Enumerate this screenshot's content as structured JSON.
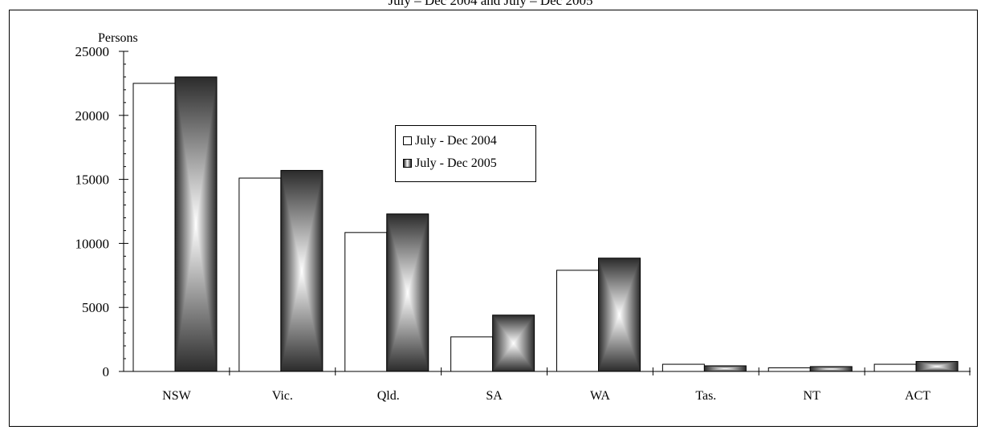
{
  "chart_data": {
    "type": "bar",
    "title": "July – Dec 2004 and July – Dec 2005",
    "ylabel": "Persons",
    "xlabel": "",
    "ylim": [
      0,
      25000
    ],
    "yticks": [
      "0",
      "5000",
      "10000",
      "15000",
      "20000",
      "25000"
    ],
    "categories": [
      "NSW",
      "Vic.",
      "Qld.",
      "SA",
      "WA",
      "Tas.",
      "NT",
      "ACT"
    ],
    "series": [
      {
        "name": "July - Dec 2004",
        "values": [
          22500,
          15100,
          10850,
          2700,
          7900,
          560,
          280,
          560
        ]
      },
      {
        "name": "July - Dec 2005",
        "values": [
          23000,
          15700,
          12300,
          4400,
          8850,
          440,
          380,
          780
        ]
      }
    ],
    "legend_position": "upper-middle",
    "grid": false,
    "colors": {
      "series_0": "#ffffff",
      "series_1_dark": "#2b2b2b",
      "series_1_light": "#ffffff",
      "edge": "#000000"
    }
  }
}
